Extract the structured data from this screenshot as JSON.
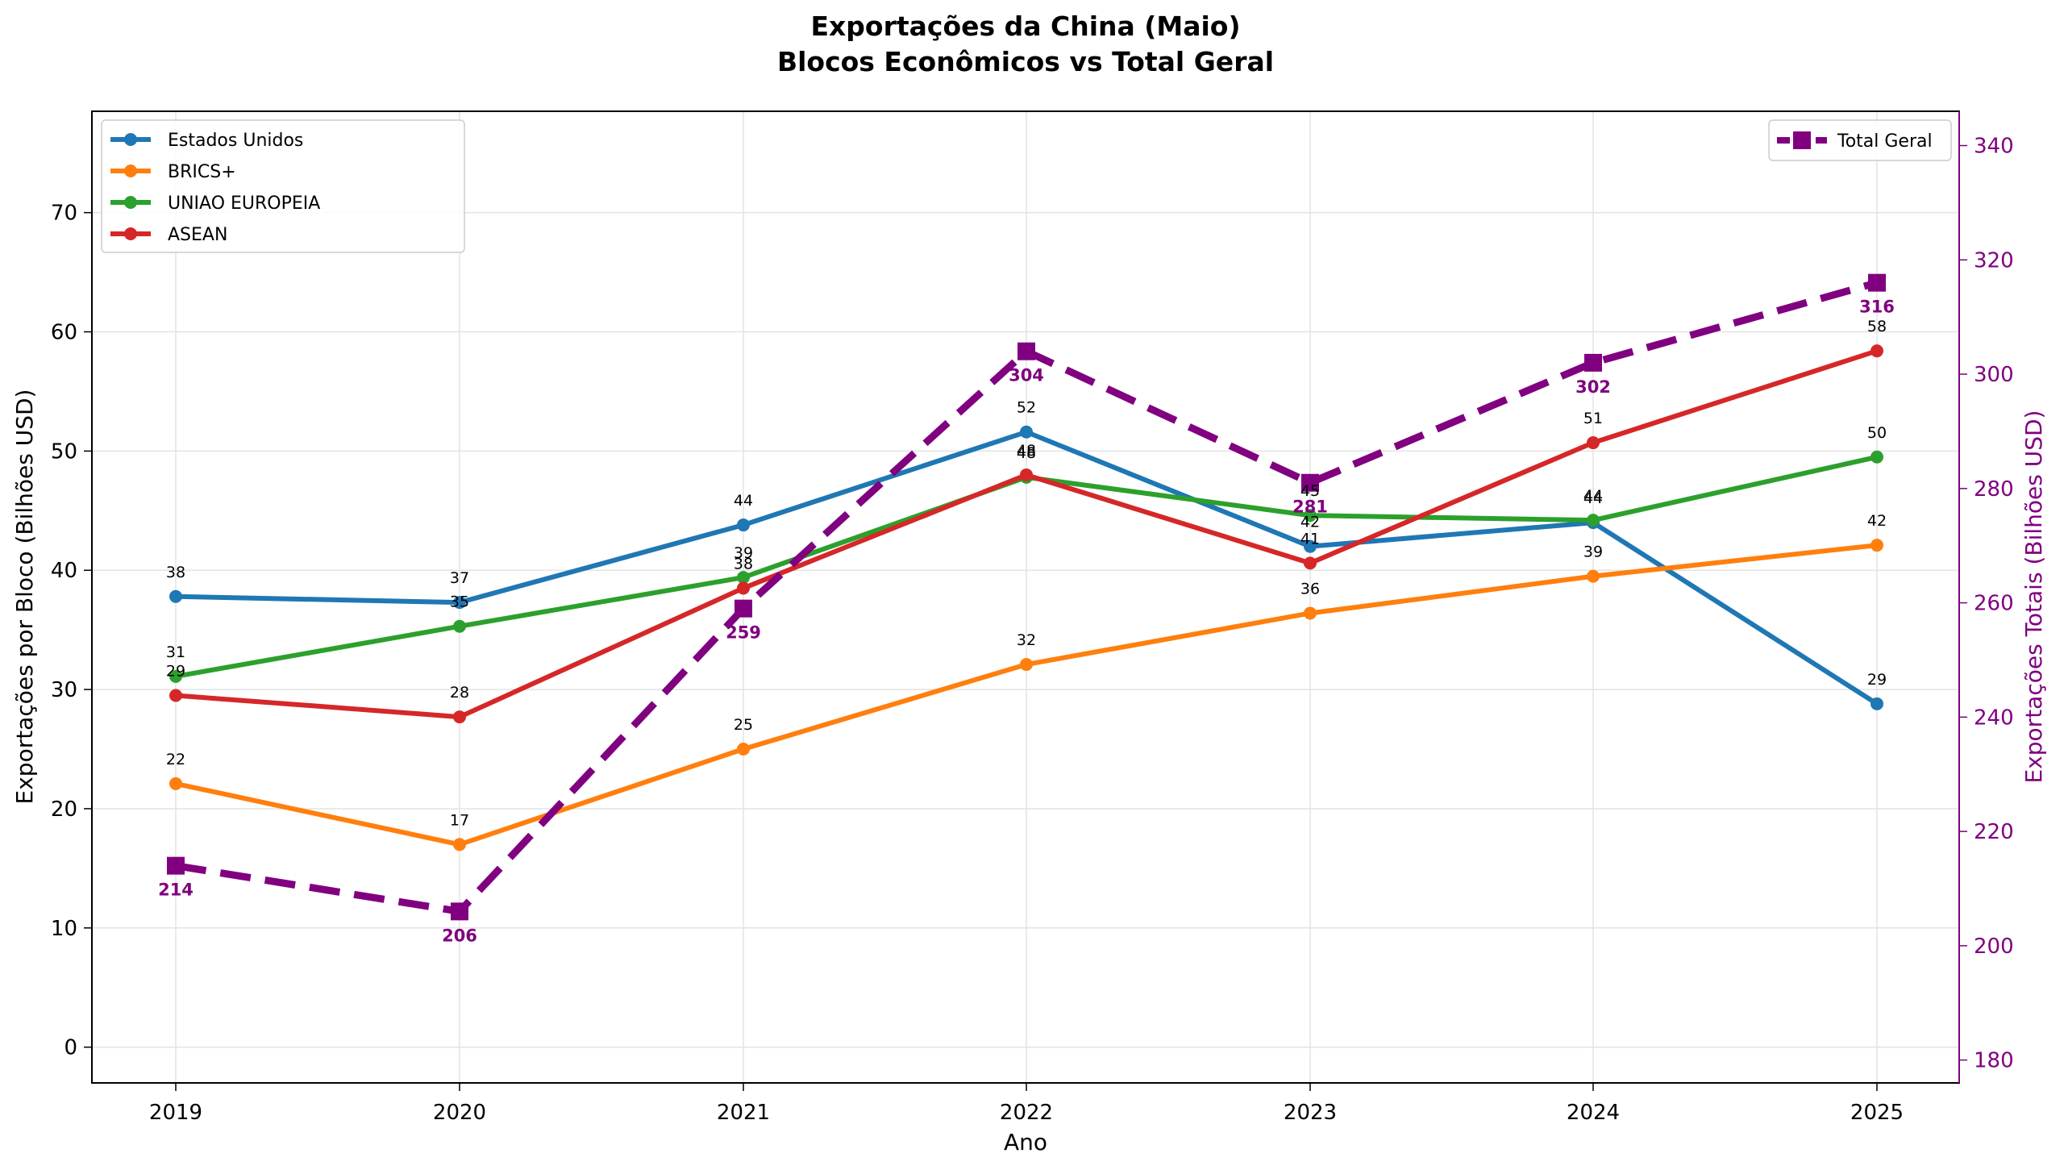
{
  "chart_data": {
    "type": "line",
    "title_lines": [
      "Exportações da China (Maio)",
      "Blocos Econômicos vs Total Geral"
    ],
    "xlabel": "Ano",
    "ylabel_left": "Exportações por Bloco (Bilhões USD)",
    "ylabel_right": "Exportações Totais (Bilhões USD)",
    "categories": [
      "2019",
      "2020",
      "2021",
      "2022",
      "2023",
      "2024",
      "2025"
    ],
    "ylim_left": [
      -3,
      78.5
    ],
    "ylim_right": [
      176,
      346
    ],
    "yticks_left": [
      "0",
      "10",
      "20",
      "30",
      "40",
      "50",
      "60",
      "70"
    ],
    "yticks_right": [
      "180",
      "200",
      "220",
      "240",
      "260",
      "280",
      "300",
      "320",
      "340"
    ],
    "grid": true,
    "legend_left_position": "upper-left",
    "legend_right_position": "upper-right",
    "series": [
      {
        "name": "Estados Unidos",
        "color": "#1f77b4",
        "axis": "left",
        "values": [
          37.8,
          37.3,
          43.8,
          51.6,
          42.0,
          44.0,
          28.8
        ],
        "labels": [
          "38",
          "37",
          "44",
          "52",
          "42",
          "44",
          "29"
        ]
      },
      {
        "name": "BRICS+",
        "color": "#ff7f0e",
        "axis": "left",
        "values": [
          22.1,
          17.0,
          25.0,
          32.1,
          36.4,
          39.5,
          42.1
        ],
        "labels": [
          "22",
          "17",
          "25",
          "32",
          "36",
          "39",
          "42"
        ]
      },
      {
        "name": "UNIAO EUROPEIA",
        "color": "#2ca02c",
        "axis": "left",
        "values": [
          31.1,
          35.3,
          39.4,
          47.8,
          44.6,
          44.2,
          49.5
        ],
        "labels": [
          "31",
          "35",
          "39",
          "48",
          "45",
          "44",
          "50"
        ]
      },
      {
        "name": "ASEAN",
        "color": "#d62728",
        "axis": "left",
        "values": [
          29.5,
          27.7,
          38.5,
          48.0,
          40.6,
          50.7,
          58.4
        ],
        "labels": [
          "29",
          "28",
          "38",
          "48",
          "41",
          "51",
          "58"
        ]
      }
    ],
    "total": {
      "name": "Total Geral",
      "color": "#800080",
      "axis": "right",
      "values": [
        214,
        206,
        259,
        304,
        281,
        302,
        316
      ],
      "labels": [
        "214",
        "206",
        "259",
        "304",
        "281",
        "302",
        "316"
      ]
    }
  }
}
